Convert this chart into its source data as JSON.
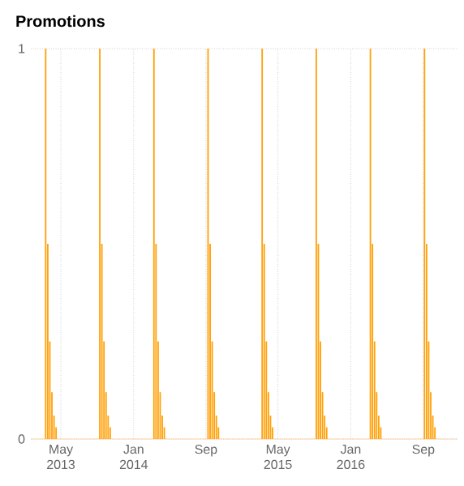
{
  "chart_data": {
    "type": "bar",
    "title": "Promotions",
    "color": "#ffa10a",
    "x": [
      "2013-03-11",
      "2013-03-18",
      "2013-03-25",
      "2013-04-01",
      "2013-04-08",
      "2013-04-15",
      "2013-09-09",
      "2013-09-16",
      "2013-09-23",
      "2013-09-30",
      "2013-10-07",
      "2013-10-14",
      "2014-03-10",
      "2014-03-17",
      "2014-03-24",
      "2014-03-31",
      "2014-04-07",
      "2014-04-14",
      "2014-09-08",
      "2014-09-15",
      "2014-09-22",
      "2014-09-29",
      "2014-10-06",
      "2014-10-13",
      "2015-03-09",
      "2015-03-16",
      "2015-03-23",
      "2015-03-30",
      "2015-04-06",
      "2015-04-13",
      "2015-09-07",
      "2015-09-14",
      "2015-09-21",
      "2015-09-28",
      "2015-10-05",
      "2015-10-12",
      "2016-03-07",
      "2016-03-14",
      "2016-03-21",
      "2016-03-28",
      "2016-04-04",
      "2016-04-11",
      "2016-09-05",
      "2016-09-12",
      "2016-09-19",
      "2016-09-26",
      "2016-10-03",
      "2016-10-10"
    ],
    "values": [
      1,
      0.5,
      0.25,
      0.12,
      0.06,
      0.03,
      1,
      0.5,
      0.25,
      0.12,
      0.06,
      0.03,
      1,
      0.5,
      0.25,
      0.12,
      0.06,
      0.03,
      1,
      0.5,
      0.25,
      0.12,
      0.06,
      0.03,
      1,
      0.5,
      0.25,
      0.12,
      0.06,
      0.03,
      1,
      0.5,
      0.25,
      0.12,
      0.06,
      0.03,
      1,
      0.5,
      0.25,
      0.12,
      0.06,
      0.03,
      1,
      0.5,
      0.25,
      0.12,
      0.06,
      0.03
    ],
    "xlim": [
      "2013-01-20",
      "2016-12-25"
    ],
    "xticks": [
      {
        "value": "2013-05-01",
        "label": "May 2013"
      },
      {
        "value": "2014-01-01",
        "label": "Jan 2014"
      },
      {
        "value": "2014-09-01",
        "label": "Sep"
      },
      {
        "value": "2015-05-01",
        "label": "May 2015"
      },
      {
        "value": "2016-01-01",
        "label": "Jan 2016"
      },
      {
        "value": "2016-09-01",
        "label": "Sep"
      }
    ],
    "ylim": [
      0,
      1
    ],
    "yticks": [
      0,
      1
    ],
    "grid": true
  }
}
